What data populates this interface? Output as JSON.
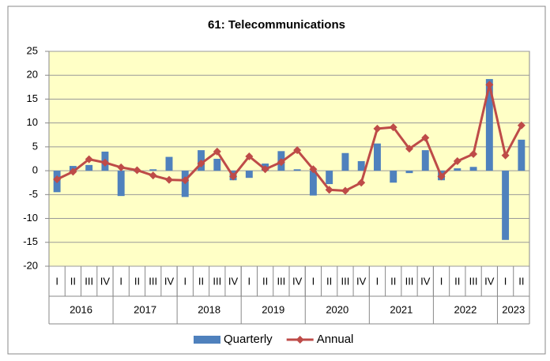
{
  "chart_data": {
    "type": "bar_line",
    "title": "61: Telecommunications",
    "groups": [
      {
        "label": "2016",
        "categories": [
          "I",
          "II",
          "III",
          "IV"
        ]
      },
      {
        "label": "2017",
        "categories": [
          "I",
          "II",
          "III",
          "IV"
        ]
      },
      {
        "label": "2018",
        "categories": [
          "I",
          "II",
          "III",
          "IV"
        ]
      },
      {
        "label": "2019",
        "categories": [
          "I",
          "II",
          "III",
          "IV"
        ]
      },
      {
        "label": "2020",
        "categories": [
          "I",
          "II",
          "III",
          "IV"
        ]
      },
      {
        "label": "2021",
        "categories": [
          "I",
          "II",
          "III",
          "IV"
        ]
      },
      {
        "label": "2022",
        "categories": [
          "I",
          "II",
          "III",
          "IV"
        ]
      },
      {
        "label": "2023",
        "categories": [
          "I",
          "II"
        ]
      }
    ],
    "series": [
      {
        "name": "Quarterly",
        "kind": "bar",
        "color": "#4f81bd",
        "values": [
          -4.5,
          1.0,
          1.2,
          4.0,
          -5.3,
          -0.2,
          0.3,
          2.9,
          -5.5,
          4.3,
          2.5,
          -2.0,
          -1.5,
          1.5,
          4.1,
          0.3,
          -5.2,
          -2.8,
          3.7,
          2.0,
          5.7,
          -2.5,
          -0.5,
          4.3,
          -2.0,
          0.5,
          0.8,
          19.2,
          -14.5,
          6.5
        ]
      },
      {
        "name": "Annual",
        "kind": "line",
        "color": "#be4b48",
        "values": [
          -1.8,
          -0.2,
          2.4,
          1.7,
          0.7,
          0.1,
          -1.0,
          -1.9,
          -2.0,
          1.5,
          4.0,
          -1.2,
          3.0,
          0.3,
          1.8,
          4.3,
          0.3,
          -4.0,
          -4.2,
          -2.5,
          8.8,
          9.1,
          4.6,
          6.9,
          -1.2,
          2.0,
          3.5,
          18.0,
          3.2,
          9.5
        ]
      }
    ],
    "ylim": [
      -20,
      25
    ],
    "yticks": [
      -20,
      -15,
      -10,
      -5,
      0,
      5,
      10,
      15,
      20,
      25
    ],
    "grid": true,
    "legend": "bottom"
  }
}
